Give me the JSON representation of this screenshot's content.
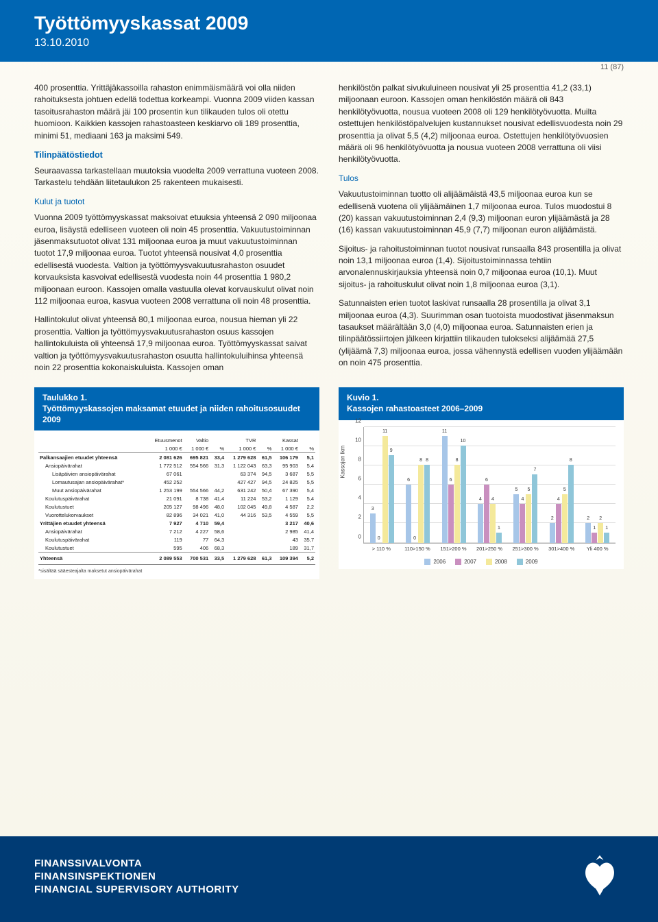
{
  "header": {
    "title": "Työttömyyskassat 2009",
    "date": "13.10.2010"
  },
  "page_num": "11 (87)",
  "col_left": {
    "p1": "400 prosenttia. Yrittäjäkassoilla rahaston enimmäismäärä voi olla niiden rahoituksesta johtuen edellä todettua korkeampi. Vuonna 2009 viiden kassan tasoitusrahaston määrä jäi 100 prosentin kun tilikauden tulos oli otettu huomioon. Kaikkien kassojen rahastoasteen keskiarvo oli 189 prosenttia, minimi 51, mediaani 163 ja maksimi 549.",
    "h1": "Tilinpäätöstiedot",
    "p2": "Seuraavassa tarkastellaan muutoksia vuodelta 2009 verrattuna vuoteen 2008. Tarkastelu tehdään liitetaulukon 25 rakenteen mukaisesti.",
    "sub1": "Kulut ja tuotot",
    "p3": "Vuonna 2009 työttömyyskassat maksoivat etuuksia yhteensä 2 090 miljoonaa euroa, lisäystä edelliseen vuoteen oli noin 45 prosenttia. Vakuutustoiminnan jäsenmaksutuotot olivat 131 miljoonaa euroa ja muut vakuutustoiminnan tuotot 17,9 miljoonaa euroa. Tuotot yhteensä nousivat 4,0 prosenttia edellisestä vuodesta. Valtion ja työttömyysvakuutusrahaston osuudet korvauksista kasvoivat edellisestä vuodesta noin 44 prosenttia 1 980,2 miljoonaan euroon. Kassojen omalla vastuulla olevat korvauskulut olivat noin 112 miljoonaa euroa, kasvua vuoteen 2008 verrattuna oli noin 48 prosenttia.",
    "p4": "Hallintokulut olivat yhteensä 80,1 miljoonaa euroa, nousua hieman yli 22 prosenttia. Valtion ja työttömyysvakuutusrahaston osuus kassojen hallintokuluista oli yhteensä 17,9 miljoonaa euroa. Työttömyyskassat saivat valtion ja työttömyysvakuutusrahaston osuutta hallintokuluihinsa yhteensä noin 22 prosenttia kokonaiskuluista. Kassojen oman"
  },
  "col_right": {
    "p1": "henkilöstön palkat sivukuluineen nousivat yli 25 prosenttia 41,2 (33,1) miljoonaan euroon. Kassojen oman henkilöstön määrä oli 843 henkilötyövuotta, nousua vuoteen 2008 oli 129 henkilötyövuotta. Muilta ostettujen henkilöstöpalvelujen kustannukset nousivat edellisvuodesta noin 29 prosenttia ja olivat 5,5 (4,2) miljoonaa euroa. Ostettujen henkilötyövuosien määrä oli 96 henkilötyövuotta ja nousua vuoteen 2008 verrattuna oli viisi henkilötyövuotta.",
    "h1": "Tulos",
    "p2": "Vakuutustoiminnan tuotto oli alijäämäistä 43,5 miljoonaa euroa kun se edellisenä vuotena oli ylijäämäinen 1,7 miljoonaa euroa. Tulos muodostui 8 (20) kassan vakuutustoiminnan 2,4 (9,3) miljoonan euron ylijäämästä ja 28 (16) kassan vakuutustoiminnan 45,9 (7,7) miljoonan euron alijäämästä.",
    "p3": "Sijoitus- ja rahoitustoiminnan tuotot nousivat runsaalla 843 prosentilla ja olivat noin 13,1 miljoonaa euroa (1,4). Sijoitustoiminnassa tehtiin arvonalennuskirjauksia yhteensä noin 0,7 miljoonaa euroa (10,1). Muut sijoitus- ja rahoituskulut olivat noin 1,8 miljoonaa euroa (3,1).",
    "p4": "Satunnaisten erien tuotot laskivat runsaalla 28 prosentilla ja olivat 3,1 miljoonaa euroa (4,3). Suurimman osan tuotoista muodostivat jäsenmaksun tasaukset määrältään 3,0 (4,0) miljoonaa euroa. Satunnaisten erien ja tilinpäätössiirtojen jälkeen kirjattiin tilikauden tulokseksi alijäämää 27,5 (ylijäämä 7,3) miljoonaa euroa, jossa vähennystä edellisen vuoden ylijäämään on noin 475 prosenttia."
  },
  "table": {
    "title": "Taulukko 1.",
    "subtitle": "Työttömyyskassojen maksamat etuudet ja niiden rahoitusosuudet 2009",
    "head_groups": [
      "",
      "Etuusmenot",
      "Valtio",
      "",
      "TVR",
      "",
      "Kassat",
      ""
    ],
    "head_units": [
      "",
      "1 000 €",
      "1 000 €",
      "%",
      "1 000 €",
      "%",
      "1 000 €",
      "%"
    ],
    "rows": [
      {
        "cls": "bold",
        "label": "Palkansaajien etuudet yhteensä",
        "c": [
          "2 081 626",
          "695 821",
          "33,4",
          "1 279 628",
          "61,5",
          "106 179",
          "5,1"
        ]
      },
      {
        "cls": "indent1",
        "label": "Ansiopäivärahat",
        "c": [
          "1 772 512",
          "554 566",
          "31,3",
          "1 122 043",
          "63,3",
          "95 903",
          "5,4"
        ]
      },
      {
        "cls": "indent2",
        "label": "Lisäpäivien ansiopäivärahat",
        "c": [
          "67 061",
          "",
          "",
          "63 374",
          "94,5",
          "3 687",
          "5,5"
        ]
      },
      {
        "cls": "indent2",
        "label": "Lomautusajan ansiopäivärahat*",
        "c": [
          "452 252",
          "",
          "",
          "427 427",
          "94,5",
          "24 825",
          "5,5"
        ]
      },
      {
        "cls": "indent2",
        "label": "Muut ansiopäivärahat",
        "c": [
          "1 253 199",
          "554 566",
          "44,2",
          "631 242",
          "50,4",
          "67 390",
          "5,4"
        ]
      },
      {
        "cls": "indent1",
        "label": "Koulutuspäivärahat",
        "c": [
          "21 091",
          "8 738",
          "41,4",
          "11 224",
          "53,2",
          "1 129",
          "5,4"
        ]
      },
      {
        "cls": "indent1",
        "label": "Koulutustuet",
        "c": [
          "205 127",
          "98 496",
          "48,0",
          "102 045",
          "49,8",
          "4 587",
          "2,2"
        ]
      },
      {
        "cls": "indent1",
        "label": "Vuorottelukorvaukset",
        "c": [
          "82 896",
          "34 021",
          "41,0",
          "44 316",
          "53,5",
          "4 559",
          "5,5"
        ]
      },
      {
        "cls": "bold",
        "label": "Yrittäjien etuudet yhteensä",
        "c": [
          "7 927",
          "4 710",
          "59,4",
          "",
          "",
          "3 217",
          "40,6"
        ]
      },
      {
        "cls": "indent1",
        "label": "Ansiopäivärahat",
        "c": [
          "7 212",
          "4 227",
          "58,6",
          "",
          "",
          "2 985",
          "41,4"
        ]
      },
      {
        "cls": "indent1",
        "label": "Koulutuspäivärahat",
        "c": [
          "119",
          "77",
          "64,3",
          "",
          "",
          "43",
          "35,7"
        ]
      },
      {
        "cls": "indent1",
        "label": "Koulutustuet",
        "c": [
          "595",
          "406",
          "68,3",
          "",
          "",
          "189",
          "31,7"
        ]
      }
    ],
    "totals": {
      "label": "Yhteensä",
      "c": [
        "2 089 553",
        "700 531",
        "33,5",
        "1 279 628",
        "61,3",
        "109 394",
        "5,2"
      ]
    },
    "footnote": "*sisältää sääesteajalta maksetut ansiopäivärahat"
  },
  "chart": {
    "title": "Kuvio 1.",
    "subtitle": "Kassojen rahastoasteet 2006–2009",
    "ytitle": "Kassojen lkm",
    "ymax": 12,
    "ystep": 2,
    "categories": [
      "> 110 %",
      "110>150 %",
      "151>200 %",
      "201>250 %",
      "251>300 %",
      "301>400 %",
      "Yli 400 %"
    ],
    "years": [
      "2006",
      "2007",
      "2008",
      "2009"
    ],
    "series_colors": [
      "#a7c6e8",
      "#c98fbf",
      "#f4e99b",
      "#8fc6d9"
    ],
    "data": [
      [
        3,
        0,
        11,
        9
      ],
      [
        6,
        0,
        8,
        8
      ],
      [
        11,
        6,
        8,
        10
      ],
      [
        4,
        6,
        4,
        1
      ],
      [
        5,
        4,
        5,
        7
      ],
      [
        2,
        4,
        5,
        8
      ],
      [
        2,
        1,
        2,
        1
      ]
    ],
    "bg": "#ffffff",
    "grid_color": "#dddddd"
  },
  "footer": {
    "names": [
      "FINANSSIVALVONTA",
      "FINANSINSPEKTIONEN",
      "FINANCIAL SUPERVISORY AUTHORITY"
    ]
  }
}
